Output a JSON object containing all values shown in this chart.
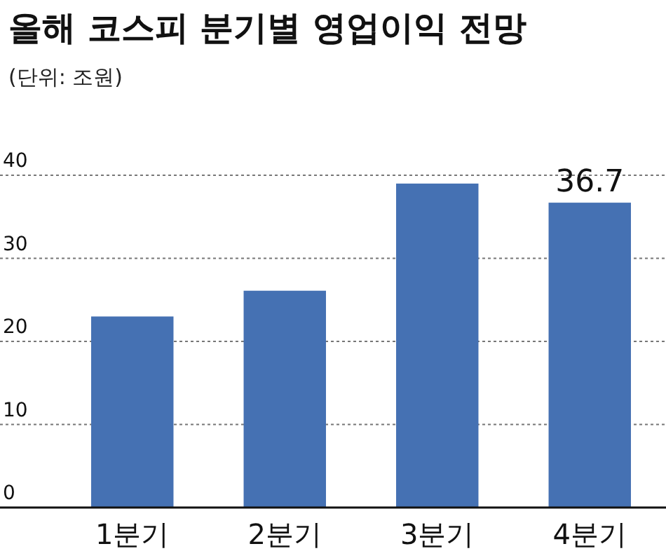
{
  "chart_data": {
    "type": "bar",
    "title": "올해 코스피 분기별 영업이익 전망",
    "subtitle": "(단위: 조원)",
    "categories": [
      "1분기",
      "2분기",
      "3분기",
      "4분기"
    ],
    "values": [
      23.0,
      26.1,
      39.0,
      36.7
    ],
    "color": "#4571b3",
    "value_labels": [
      null,
      null,
      null,
      "36.7"
    ],
    "ylim": [
      0,
      40
    ],
    "yticks": [
      0,
      10,
      20,
      30,
      40
    ],
    "grid": "y"
  }
}
